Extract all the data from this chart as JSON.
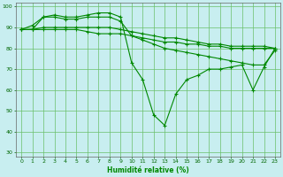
{
  "title": "",
  "xlabel": "Humidité relative (%)",
  "ylabel": "",
  "background_color": "#c8eef0",
  "grid_color": "#6abf6a",
  "line_color": "#008800",
  "xlim": [
    0,
    23
  ],
  "ylim": [
    28,
    102
  ],
  "yticks": [
    30,
    40,
    50,
    60,
    70,
    80,
    90,
    100
  ],
  "xticks": [
    0,
    1,
    2,
    3,
    4,
    5,
    6,
    7,
    8,
    9,
    10,
    11,
    12,
    13,
    14,
    15,
    16,
    17,
    18,
    19,
    20,
    21,
    22,
    23
  ],
  "series": [
    [
      89,
      91,
      95,
      96,
      95,
      95,
      96,
      97,
      97,
      95,
      73,
      65,
      48,
      43,
      58,
      65,
      67,
      70,
      70,
      71,
      72,
      60,
      71,
      80
    ],
    [
      89,
      89,
      95,
      95,
      94,
      94,
      95,
      95,
      95,
      93,
      86,
      84,
      82,
      80,
      79,
      78,
      77,
      76,
      75,
      74,
      73,
      72,
      72,
      79
    ],
    [
      89,
      89,
      89,
      89,
      89,
      89,
      88,
      87,
      87,
      87,
      86,
      85,
      84,
      83,
      83,
      82,
      82,
      81,
      81,
      80,
      80,
      80,
      80,
      80
    ],
    [
      89,
      89,
      90,
      90,
      90,
      90,
      90,
      90,
      90,
      89,
      88,
      87,
      86,
      85,
      85,
      84,
      83,
      82,
      82,
      81,
      81,
      81,
      81,
      80
    ]
  ],
  "marker": "+"
}
